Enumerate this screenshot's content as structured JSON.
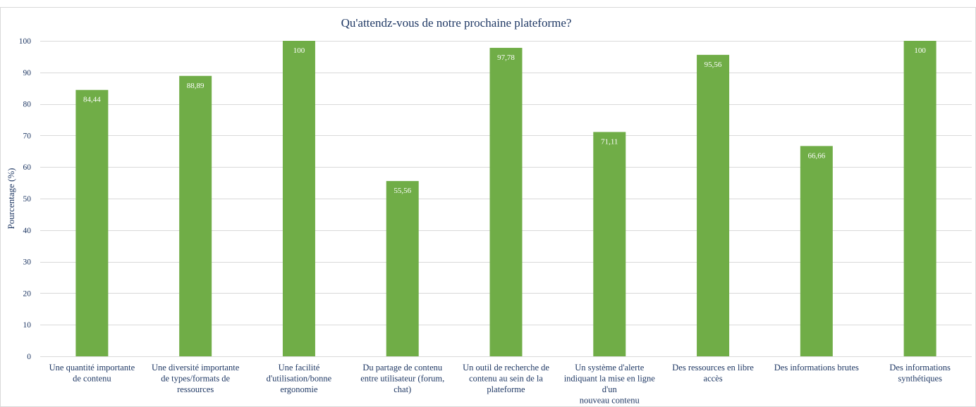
{
  "chart_data": {
    "type": "bar",
    "title": "Qu'attendz-vous de notre prochaine plateforme?",
    "xlabel": "",
    "ylabel": "Pourcentage (%)",
    "ylim": [
      0,
      100
    ],
    "yticks": [
      0,
      10,
      20,
      30,
      40,
      50,
      60,
      70,
      80,
      90,
      100
    ],
    "grid": true,
    "bar_color": "#70ad47",
    "categories": [
      [
        "Une quantité importante",
        "de contenu"
      ],
      [
        "Une diversité importante",
        "de types/formats de",
        "ressources"
      ],
      [
        "Une facilité",
        "d'utilisation/bonne",
        "ergonomie"
      ],
      [
        "Du partage de contenu",
        "entre utilisateur (forum,",
        "chat)"
      ],
      [
        "Un outil de recherche de",
        "contenu au sein de la",
        "plateforme"
      ],
      [
        "Un système d'alerte",
        "indiquant la mise en ligne",
        "d'un",
        "nouveau contenu"
      ],
      [
        "Des ressources en libre",
        "accès"
      ],
      [
        "Des informations brutes"
      ],
      [
        "Des informations",
        "synthétiques"
      ]
    ],
    "values": [
      84.44,
      88.89,
      100,
      55.56,
      97.78,
      71.11,
      95.56,
      66.66,
      100
    ],
    "data_labels": [
      "84,44",
      "88,89",
      "100",
      "55,56",
      "97,78",
      "71,11",
      "95,56",
      "66,66",
      "100"
    ]
  }
}
